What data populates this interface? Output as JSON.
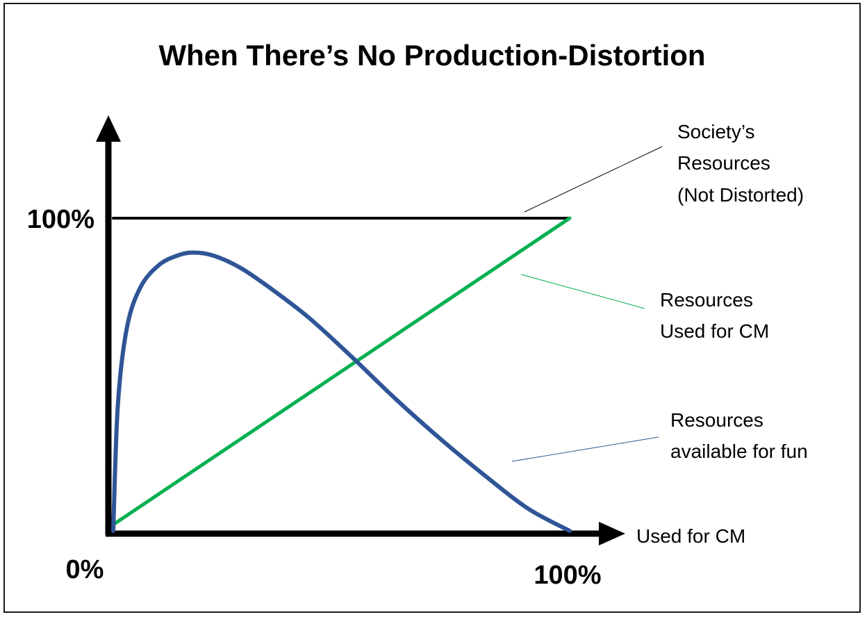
{
  "chart_data": {
    "type": "line",
    "title": "When There’s No Production-Distortion",
    "xlabel": "Used for CM",
    "ylabel": "",
    "xlim": [
      0,
      100
    ],
    "ylim": [
      0,
      100
    ],
    "x_ticks": [
      "0%",
      "100%"
    ],
    "y_ticks": [
      "100%"
    ],
    "grid": false,
    "series": [
      {
        "name": "Society’s Resources (Not Distorted)",
        "label_lines": [
          "Society’s",
          "Resources",
          "(Not Distorted)"
        ],
        "color": "#000000",
        "x": [
          0,
          100
        ],
        "y": [
          100,
          100
        ]
      },
      {
        "name": "Resources Used for CM",
        "label_lines": [
          "Resources",
          "Used for CM"
        ],
        "color": "#00b050",
        "x": [
          0,
          100
        ],
        "y": [
          2,
          100
        ]
      },
      {
        "name": "Resources available for fun",
        "label_lines": [
          "Resources",
          "available for fun"
        ],
        "color": "#2f5597",
        "x": [
          0,
          1,
          3,
          6,
          10,
          14,
          17.5,
          22,
          28,
          35,
          43,
          52,
          62,
          72,
          82,
          91,
          100
        ],
        "y": [
          0,
          40,
          65,
          78,
          85,
          88,
          89,
          88,
          84,
          77,
          68,
          56,
          42,
          29,
          17,
          7,
          0
        ]
      }
    ]
  }
}
